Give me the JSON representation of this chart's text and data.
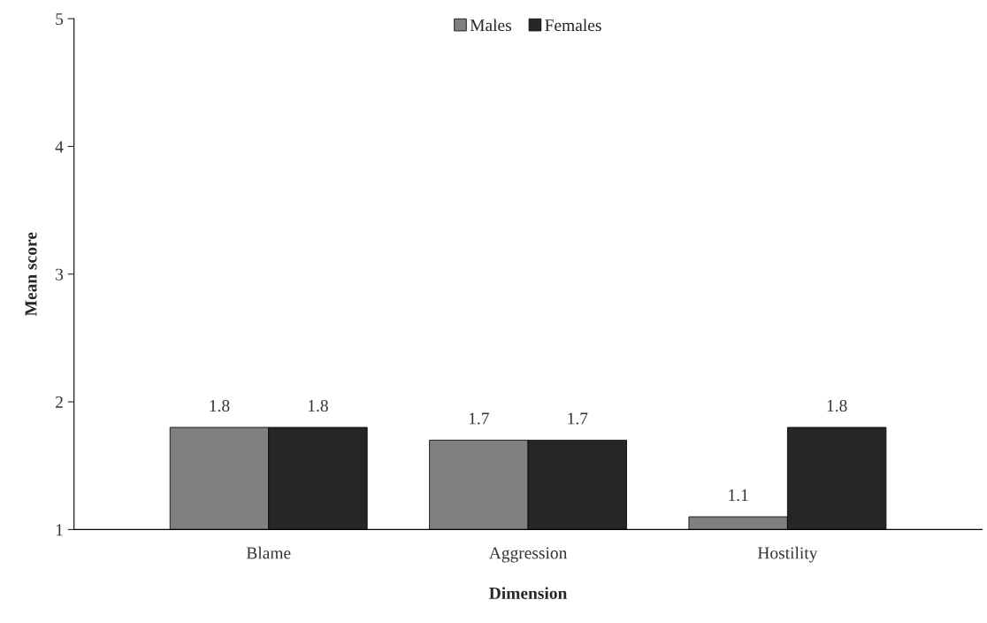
{
  "chart_data": {
    "type": "bar",
    "xlabel": "Dimension",
    "ylabel": "Mean score",
    "categories": [
      "Blame",
      "Aggression",
      "Hostility"
    ],
    "series": [
      {
        "name": "Males",
        "color": "#808080",
        "values": [
          1.8,
          1.7,
          1.1
        ]
      },
      {
        "name": "Females",
        "color": "#262626",
        "values": [
          1.8,
          1.7,
          1.8
        ]
      }
    ],
    "ylim": [
      1,
      5
    ],
    "yticks": [
      1,
      2,
      3,
      4,
      5
    ],
    "grid": false,
    "legend": "top",
    "data_labels": true
  }
}
